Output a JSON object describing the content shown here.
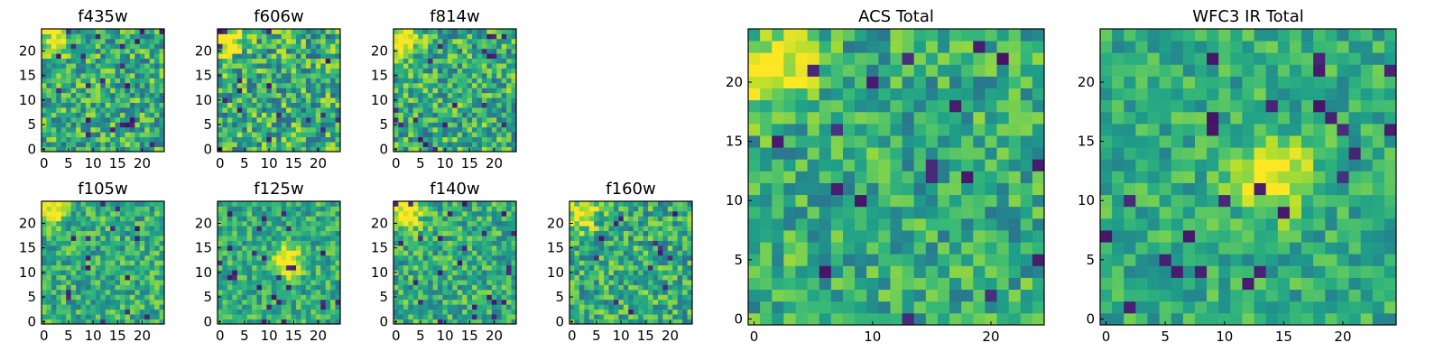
{
  "chart_data": {
    "type": "heatmap",
    "colormap": "viridis",
    "grid": false,
    "panels": [
      {
        "title": "f435w",
        "xlim": [
          0,
          24
        ],
        "ylim": [
          0,
          24
        ],
        "xticks": [
          0,
          5,
          10,
          15,
          20
        ],
        "yticks": [
          0,
          5,
          10,
          15,
          20
        ],
        "hot_spot": [
          2,
          22
        ],
        "noise": 0.55
      },
      {
        "title": "f606w",
        "xlim": [
          0,
          24
        ],
        "ylim": [
          0,
          24
        ],
        "xticks": [
          0,
          5,
          10,
          15,
          20
        ],
        "yticks": [
          0,
          5,
          10,
          15,
          20
        ],
        "hot_spot": [
          1,
          22
        ],
        "noise": 0.6
      },
      {
        "title": "f814w",
        "xlim": [
          0,
          24
        ],
        "ylim": [
          0,
          24
        ],
        "xticks": [
          0,
          5,
          10,
          15,
          20
        ],
        "yticks": [
          0,
          5,
          10,
          15,
          20
        ],
        "hot_spot": [
          2,
          22
        ],
        "noise": 0.55
      },
      {
        "title": "f105w",
        "xlim": [
          0,
          24
        ],
        "ylim": [
          0,
          24
        ],
        "xticks": [
          0,
          5,
          10,
          15,
          20
        ],
        "yticks": [
          0,
          5,
          10,
          15,
          20
        ],
        "hot_spot": [
          1,
          23
        ],
        "noise": 0.45
      },
      {
        "title": "f125w",
        "xlim": [
          0,
          24
        ],
        "ylim": [
          0,
          24
        ],
        "xticks": [
          0,
          5,
          10,
          15,
          20
        ],
        "yticks": [
          0,
          5,
          10,
          15,
          20
        ],
        "hot_spot": [
          14,
          12
        ],
        "noise": 0.4
      },
      {
        "title": "f140w",
        "xlim": [
          0,
          24
        ],
        "ylim": [
          0,
          24
        ],
        "xticks": [
          0,
          5,
          10,
          15,
          20
        ],
        "yticks": [
          0,
          5,
          10,
          15,
          20
        ],
        "hot_spot": [
          2,
          22
        ],
        "noise": 0.45
      },
      {
        "title": "f160w",
        "xlim": [
          0,
          24
        ],
        "ylim": [
          0,
          24
        ],
        "xticks": [
          0,
          5,
          10,
          15,
          20
        ],
        "yticks": [
          0,
          5,
          10,
          15,
          20
        ],
        "hot_spot": [
          2,
          22
        ],
        "noise": 0.5
      },
      {
        "title": "ACS Total",
        "xlim": [
          0,
          24
        ],
        "ylim": [
          0,
          24
        ],
        "xticks": [
          0,
          10,
          20
        ],
        "yticks": [
          0,
          5,
          10,
          15,
          20
        ],
        "hot_spot": [
          2,
          21
        ],
        "noise": 0.45
      },
      {
        "title": "WFC3 IR Total",
        "xlim": [
          0,
          24
        ],
        "ylim": [
          0,
          24
        ],
        "xticks": [
          0,
          5,
          10,
          15,
          20
        ],
        "yticks": [
          0,
          5,
          10,
          15,
          20
        ],
        "hot_spot": [
          14,
          12
        ],
        "noise": 0.35
      }
    ]
  }
}
